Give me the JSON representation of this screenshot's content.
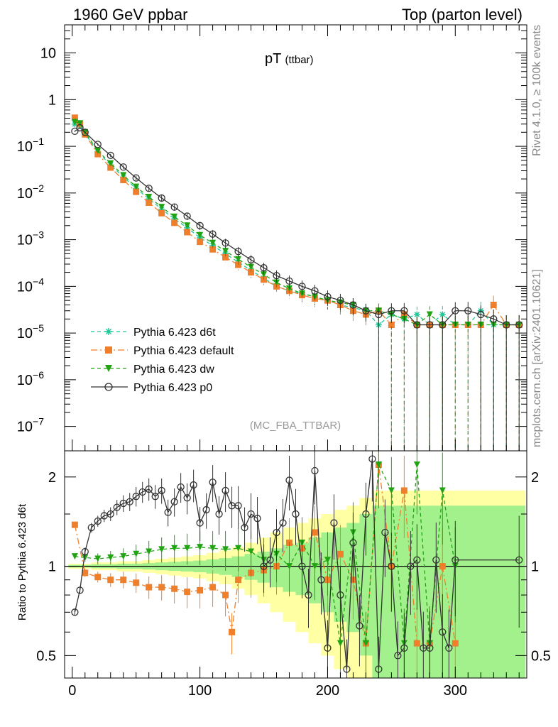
{
  "header": {
    "left": "1960 GeV ppbar",
    "right": "Top (parton level)"
  },
  "side_labels": {
    "rivet": "Rivet 4.1.0, ≥ 100k events",
    "mcplots": "mcplots.cern.ch [arXiv:2401.10621]"
  },
  "analysis_id": "(MC_FBA_TTBAR)",
  "chart_data": [
    {
      "type": "line",
      "panel": "main",
      "title": "pT",
      "title_sub": "(ttbar)",
      "xlabel": "",
      "ylabel": "",
      "xlim": [
        -6,
        356
      ],
      "ylim": [
        3e-08,
        40
      ],
      "yscale": "log",
      "x_ticks": [
        0,
        100,
        200,
        300
      ],
      "y_ticks": [
        {
          "value": 10,
          "label": "10",
          "exp": ""
        },
        {
          "value": 1,
          "label": "1",
          "exp": ""
        },
        {
          "value": 0.1,
          "label": "10",
          "exp": "−1"
        },
        {
          "value": 0.01,
          "label": "10",
          "exp": "−2"
        },
        {
          "value": 0.001,
          "label": "10",
          "exp": "−3"
        },
        {
          "value": 0.0001,
          "label": "10",
          "exp": "−4"
        },
        {
          "value": 1e-05,
          "label": "10",
          "exp": "−5"
        },
        {
          "value": 1e-06,
          "label": "10",
          "exp": "−6"
        },
        {
          "value": 1e-07,
          "label": "10",
          "exp": "−7"
        }
      ],
      "legend_position": "bottom-left",
      "series": [
        {
          "name": "Pythia 6.423 d6t",
          "color": "#1fc99a",
          "marker": "star",
          "dash": "5,4",
          "x": [
            2,
            6,
            10,
            20,
            30,
            40,
            50,
            60,
            70,
            80,
            90,
            100,
            110,
            120,
            130,
            140,
            150,
            160,
            170,
            180,
            190,
            200,
            210,
            220,
            230,
            240,
            250,
            260,
            270,
            280,
            290,
            300,
            310,
            320,
            330,
            340,
            350
          ],
          "values": [
            0.3,
            0.28,
            0.19,
            0.075,
            0.04,
            0.022,
            0.0125,
            0.0075,
            0.0045,
            0.0028,
            0.0018,
            0.0011,
            0.00075,
            0.0005,
            0.00033,
            0.00022,
            0.00015,
            0.0001,
            8e-05,
            7e-05,
            6e-05,
            5e-05,
            4e-05,
            3.5e-05,
            3e-05,
            1.5e-05,
            2.5e-05,
            2e-05,
            2.5e-05,
            1.5e-05,
            2.5e-05,
            1.5e-05,
            1.5e-05,
            3e-05,
            1.5e-05,
            1.5e-05,
            1.5e-05
          ]
        },
        {
          "name": "Pythia 6.423 default",
          "color": "#f07f2b",
          "marker": "square",
          "dash": "9,4,2,4",
          "x": [
            2,
            6,
            10,
            20,
            30,
            40,
            50,
            60,
            70,
            80,
            90,
            100,
            110,
            120,
            130,
            140,
            150,
            160,
            170,
            180,
            190,
            200,
            210,
            220,
            230,
            240,
            250,
            260,
            270,
            280,
            290,
            300,
            310,
            320,
            330,
            340,
            350
          ],
          "values": [
            0.41,
            0.3,
            0.18,
            0.068,
            0.035,
            0.019,
            0.0106,
            0.0062,
            0.0037,
            0.0023,
            0.00145,
            0.0009,
            0.00062,
            0.00042,
            0.00029,
            0.0002,
            0.00014,
            0.0001,
            8e-05,
            6.5e-05,
            5.5e-05,
            5e-05,
            4e-05,
            3e-05,
            2.5e-05,
            3e-05,
            1.5e-05,
            2.5e-05,
            1.5e-05,
            1.5e-05,
            1.5e-05,
            1.5e-05,
            1.5e-05,
            1.5e-05,
            4e-05,
            1.5e-05,
            1.5e-05
          ]
        },
        {
          "name": "Pythia 6.423 dw",
          "color": "#21a313",
          "marker": "triangle-down",
          "dash": "5,4",
          "x": [
            2,
            6,
            10,
            20,
            30,
            40,
            50,
            60,
            70,
            80,
            90,
            100,
            110,
            120,
            130,
            140,
            150,
            160,
            170,
            180,
            190,
            200,
            210,
            220,
            230,
            240,
            250,
            260,
            270,
            280,
            290,
            300,
            310,
            320,
            330,
            340,
            350
          ],
          "values": [
            0.33,
            0.31,
            0.2,
            0.08,
            0.043,
            0.024,
            0.0136,
            0.0082,
            0.005,
            0.0031,
            0.002,
            0.00125,
            0.00085,
            0.00057,
            0.00038,
            0.00026,
            0.00018,
            0.00012,
            9e-05,
            7e-05,
            6e-05,
            5e-05,
            4.5e-05,
            4e-05,
            3e-05,
            3e-05,
            2.5e-05,
            2e-05,
            1.5e-05,
            2.5e-05,
            1.5e-05,
            1.5e-05,
            1.5e-05,
            1.5e-05,
            1.5e-05,
            1.5e-05,
            1.5e-05
          ]
        },
        {
          "name": "Pythia 6.423 p0",
          "color": "#333333",
          "marker": "circle",
          "dash": "",
          "x": [
            2,
            6,
            10,
            20,
            30,
            40,
            50,
            60,
            70,
            80,
            90,
            100,
            110,
            120,
            130,
            140,
            150,
            160,
            170,
            180,
            190,
            200,
            210,
            220,
            230,
            240,
            250,
            260,
            270,
            280,
            290,
            300,
            310,
            320,
            330,
            340,
            350
          ],
          "values": [
            0.21,
            0.25,
            0.2,
            0.11,
            0.064,
            0.036,
            0.021,
            0.0126,
            0.0078,
            0.005,
            0.0032,
            0.002,
            0.00132,
            0.00085,
            0.00056,
            0.00037,
            0.00025,
            0.00017,
            0.00013,
            0.0001,
            8e-05,
            6e-05,
            5e-05,
            4e-05,
            3e-05,
            2.5e-05,
            3e-05,
            3e-05,
            1.5e-05,
            1.5e-05,
            1.5e-05,
            3e-05,
            3e-05,
            2.5e-05,
            2e-05,
            1.5e-05,
            1.5e-05
          ]
        }
      ]
    },
    {
      "type": "line",
      "panel": "ratio",
      "xlabel": "",
      "ylabel": "Ratio to Pythia 6.423 d6t",
      "xlim": [
        -6,
        356
      ],
      "ylim": [
        0.42,
        2.45
      ],
      "yscale": "log",
      "x_ticks": [
        0,
        100,
        200,
        300
      ],
      "y_ticks": [
        {
          "value": 0.5,
          "label": "0.5"
        },
        {
          "value": 1,
          "label": "1"
        },
        {
          "value": 2,
          "label": "2"
        }
      ],
      "reference": 1,
      "band_x": [
        2,
        10,
        20,
        30,
        40,
        50,
        60,
        70,
        80,
        90,
        100,
        110,
        120,
        130,
        140,
        150,
        160,
        170,
        180,
        190,
        200,
        210,
        220,
        230,
        240,
        250,
        260,
        270,
        280,
        290,
        300,
        310,
        320,
        330,
        340,
        350
      ],
      "band_yellow": [
        0.02,
        0.02,
        0.03,
        0.03,
        0.04,
        0.04,
        0.05,
        0.06,
        0.07,
        0.08,
        0.09,
        0.11,
        0.13,
        0.16,
        0.2,
        0.25,
        0.3,
        0.35,
        0.4,
        0.45,
        0.5,
        0.55,
        0.6,
        0.7,
        0.8,
        0.8,
        0.8,
        0.8,
        0.8,
        0.8,
        0.8,
        0.8,
        0.8,
        0.8,
        0.8,
        0.8
      ],
      "band_green": [
        0.01,
        0.01,
        0.015,
        0.015,
        0.02,
        0.02,
        0.025,
        0.03,
        0.035,
        0.04,
        0.045,
        0.055,
        0.065,
        0.08,
        0.1,
        0.12,
        0.15,
        0.18,
        0.2,
        0.25,
        0.3,
        0.35,
        0.4,
        0.5,
        0.6,
        0.6,
        0.6,
        0.6,
        0.6,
        0.6,
        0.6,
        0.6,
        0.6,
        0.6,
        0.6,
        0.6
      ],
      "series": [
        {
          "name": "Pythia 6.423 default",
          "color": "#f07f2b",
          "marker": "square",
          "dash": "9,4,2,4",
          "x": [
            2,
            10,
            20,
            30,
            40,
            50,
            60,
            70,
            80,
            90,
            100,
            110,
            120,
            125,
            130,
            140,
            150,
            160,
            170,
            180,
            190,
            200,
            210,
            220,
            230,
            240,
            250,
            260,
            270,
            280,
            290,
            300
          ],
          "values": [
            1.38,
            0.95,
            0.92,
            0.9,
            0.9,
            0.88,
            0.85,
            0.85,
            0.84,
            0.82,
            0.83,
            0.85,
            0.8,
            0.6,
            0.9,
            0.95,
            0.97,
            1.0,
            1.2,
            1.15,
            1.3,
            0.9,
            1.1,
            0.9,
            0.55,
            2.2,
            1.0,
            1.8,
            0.55,
            0.55,
            1.0,
            0.55
          ]
        },
        {
          "name": "Pythia 6.423 dw",
          "color": "#21a313",
          "marker": "triangle-down",
          "dash": "5,4",
          "x": [
            2,
            10,
            20,
            30,
            40,
            50,
            60,
            70,
            80,
            90,
            100,
            110,
            120,
            130,
            140,
            150,
            160,
            170,
            180,
            190,
            200,
            210,
            220,
            230,
            240,
            250,
            260,
            270,
            280,
            290,
            300
          ],
          "values": [
            1.08,
            1.07,
            1.06,
            1.07,
            1.08,
            1.1,
            1.12,
            1.14,
            1.15,
            1.15,
            1.16,
            1.15,
            1.14,
            1.15,
            1.12,
            1.05,
            1.1,
            1.0,
            1.2,
            1.0,
            1.05,
            0.55,
            1.3,
            0.55,
            2.2,
            1.8,
            0.55,
            2.2,
            0.55,
            1.8,
            1.0
          ]
        },
        {
          "name": "Pythia 6.423 p0",
          "color": "#333333",
          "marker": "circle",
          "dash": "",
          "x": [
            2,
            6,
            10,
            15,
            20,
            25,
            30,
            35,
            40,
            45,
            50,
            55,
            60,
            65,
            70,
            75,
            80,
            85,
            90,
            95,
            100,
            105,
            110,
            115,
            120,
            125,
            130,
            135,
            140,
            145,
            150,
            155,
            160,
            165,
            170,
            175,
            180,
            185,
            190,
            195,
            200,
            205,
            210,
            215,
            220,
            225,
            230,
            235,
            240,
            245,
            250,
            255,
            260,
            265,
            270,
            275,
            280,
            285,
            290,
            295,
            300,
            350
          ],
          "values": [
            0.7,
            0.83,
            1.12,
            1.35,
            1.42,
            1.48,
            1.5,
            1.58,
            1.63,
            1.65,
            1.72,
            1.78,
            1.82,
            1.72,
            1.8,
            1.52,
            1.65,
            1.85,
            1.7,
            1.88,
            1.4,
            1.55,
            1.92,
            1.5,
            1.8,
            1.6,
            1.6,
            1.35,
            1.5,
            1.45,
            1.0,
            1.05,
            1.3,
            1.4,
            1.95,
            1.5,
            1.0,
            0.8,
            2.1,
            0.9,
            0.53,
            1.4,
            0.8,
            0.45,
            1.2,
            0.63,
            1.5,
            2.3,
            0.45,
            1.3,
            1.0,
            0.5,
            0.53,
            1.0,
            1.05,
            0.53,
            0.53,
            1.05,
            0.6,
            0.53,
            1.05,
            1.05
          ]
        }
      ]
    }
  ]
}
